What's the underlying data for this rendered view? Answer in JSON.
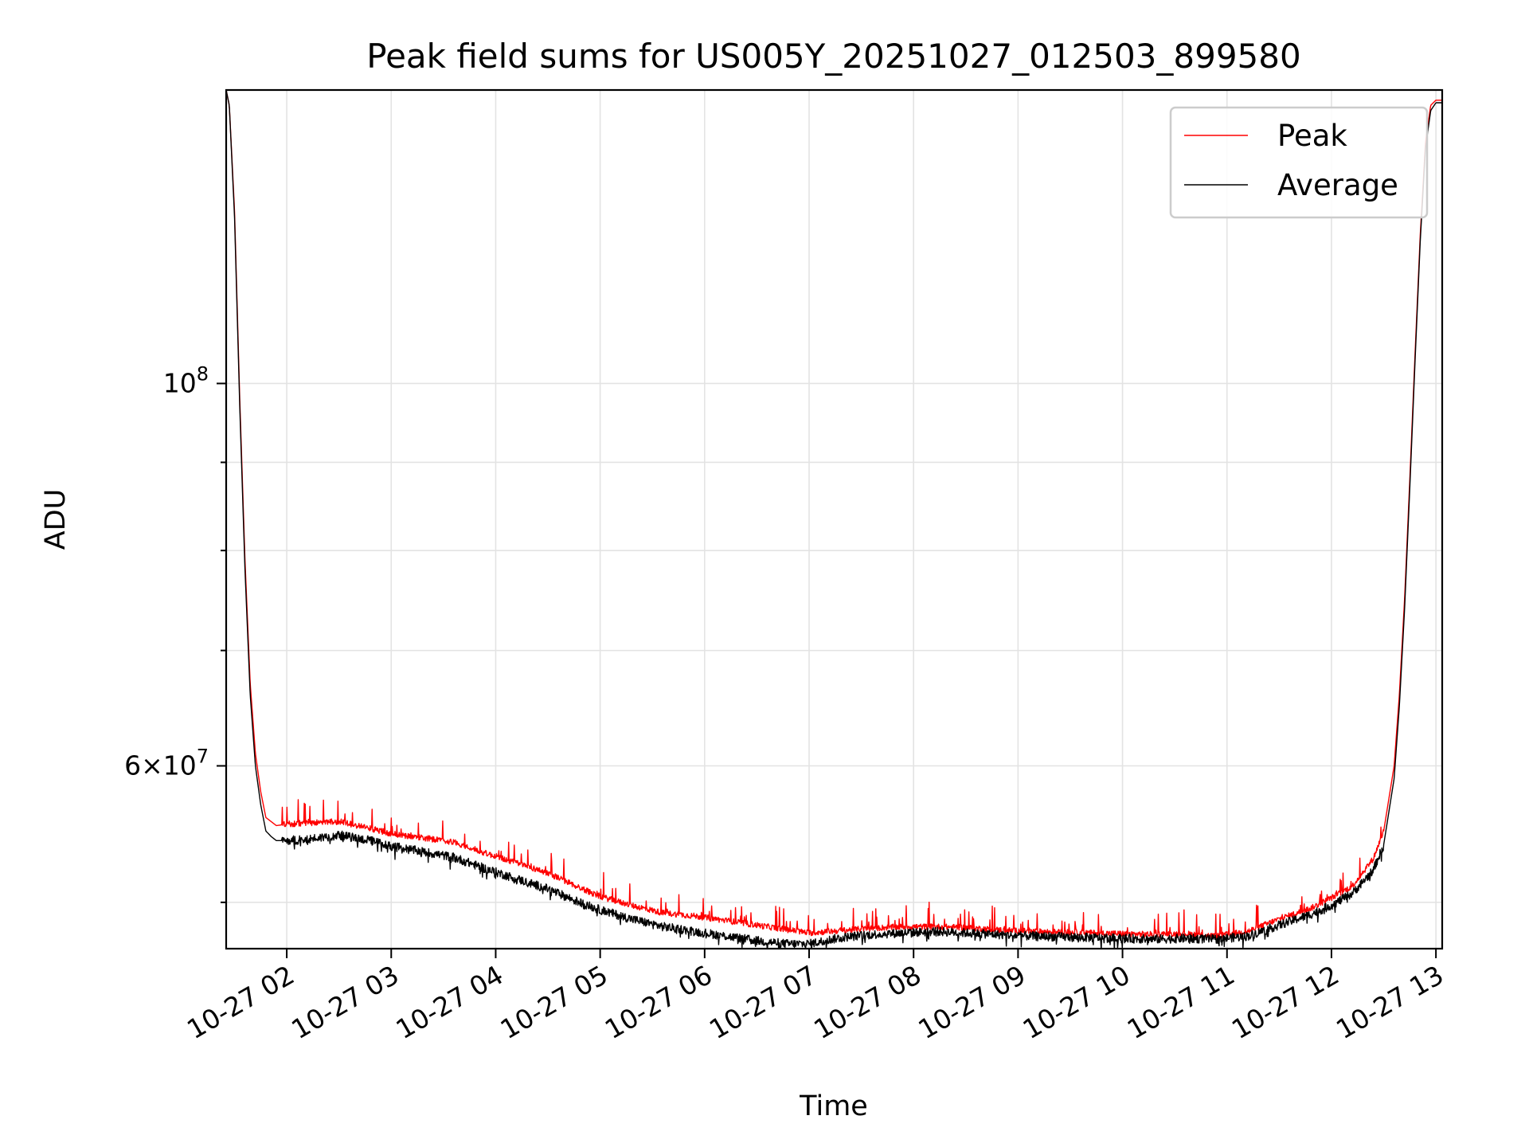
{
  "chart_data": {
    "type": "line",
    "title": "Peak field sums for US005Y_20251027_012503_899580",
    "xlabel": "Time",
    "ylabel": "ADU",
    "yscale": "log",
    "ylim": [
      47000000,
      148000000
    ],
    "xlim_hours": [
      1.42,
      13.06
    ],
    "grid": true,
    "legend_location": "top-right",
    "x_ticks": [
      {
        "label": "10-27 02",
        "hour": 2
      },
      {
        "label": "10-27 03",
        "hour": 3
      },
      {
        "label": "10-27 04",
        "hour": 4
      },
      {
        "label": "10-27 05",
        "hour": 5
      },
      {
        "label": "10-27 06",
        "hour": 6
      },
      {
        "label": "10-27 07",
        "hour": 7
      },
      {
        "label": "10-27 08",
        "hour": 8
      },
      {
        "label": "10-27 09",
        "hour": 9
      },
      {
        "label": "10-27 10",
        "hour": 10
      },
      {
        "label": "10-27 11",
        "hour": 11
      },
      {
        "label": "10-27 12",
        "hour": 12
      },
      {
        "label": "10-27 13",
        "hour": 13
      }
    ],
    "y_major_ticks": [
      {
        "value": 100000000,
        "base": "10",
        "exp": "8"
      },
      {
        "value": 60000000,
        "mantissa": "6",
        "base": "10",
        "exp": "7"
      }
    ],
    "y_minor_ticks": [
      50000000,
      70000000,
      80000000,
      90000000
    ],
    "series": [
      {
        "name": "Peak",
        "color": "#ff0000",
        "noise_fraction": 0.004,
        "spike_fraction": 0.03,
        "x_hours": [
          1.42,
          1.45,
          1.5,
          1.55,
          1.6,
          1.65,
          1.7,
          1.75,
          1.8,
          1.85,
          1.9,
          2.0,
          2.2,
          2.5,
          2.8,
          3.0,
          3.3,
          3.6,
          3.9,
          4.2,
          4.5,
          4.8,
          5.0,
          5.3,
          5.6,
          5.9,
          6.2,
          6.5,
          6.8,
          7.0,
          7.3,
          7.6,
          7.9,
          8.2,
          8.5,
          8.8,
          9.1,
          9.4,
          9.7,
          10.0,
          10.3,
          10.6,
          10.9,
          11.2,
          11.5,
          11.8,
          12.0,
          12.2,
          12.4,
          12.5,
          12.6,
          12.65,
          12.7,
          12.75,
          12.8,
          12.85,
          12.9,
          12.95,
          13.0,
          13.06
        ],
        "values": [
          148000000,
          145000000,
          126000000,
          98000000,
          79000000,
          67000000,
          61000000,
          58000000,
          56000000,
          55700000,
          55400000,
          55500000,
          55600000,
          55700000,
          55200000,
          54800000,
          54500000,
          54200000,
          53400000,
          52700000,
          52000000,
          51000000,
          50400000,
          49800000,
          49300000,
          49100000,
          48800000,
          48500000,
          48200000,
          48000000,
          48150000,
          48300000,
          48400000,
          48400000,
          48350000,
          48200000,
          48100000,
          48050000,
          48000000,
          47950000,
          47900000,
          47950000,
          47800000,
          48100000,
          48900000,
          49600000,
          50300000,
          51100000,
          53000000,
          55000000,
          60000000,
          66000000,
          75000000,
          88000000,
          104000000,
          122000000,
          138000000,
          145000000,
          146000000,
          146000000
        ]
      },
      {
        "name": "Average",
        "color": "#000000",
        "noise_fraction": 0.006,
        "spike_fraction": 0.012,
        "x_hours": [
          1.42,
          1.45,
          1.5,
          1.55,
          1.6,
          1.65,
          1.7,
          1.75,
          1.8,
          1.85,
          1.9,
          2.0,
          2.2,
          2.5,
          2.8,
          3.0,
          3.3,
          3.6,
          3.9,
          4.2,
          4.5,
          4.8,
          5.0,
          5.3,
          5.6,
          5.9,
          6.2,
          6.5,
          6.8,
          7.0,
          7.3,
          7.6,
          7.9,
          8.2,
          8.5,
          8.8,
          9.1,
          9.4,
          9.7,
          10.0,
          10.3,
          10.6,
          10.9,
          11.2,
          11.5,
          11.8,
          12.0,
          12.2,
          12.4,
          12.5,
          12.6,
          12.65,
          12.7,
          12.75,
          12.8,
          12.85,
          12.9,
          12.95,
          13.0,
          13.06
        ],
        "values": [
          148000000,
          145000000,
          125000000,
          97000000,
          78000000,
          66000000,
          60000000,
          57000000,
          55000000,
          54600000,
          54300000,
          54300000,
          54400000,
          54700000,
          54300000,
          53900000,
          53500000,
          53100000,
          52300000,
          51600000,
          50900000,
          50000000,
          49500000,
          48900000,
          48400000,
          48100000,
          47800000,
          47500000,
          47300000,
          47300000,
          47700000,
          47900000,
          48000000,
          48100000,
          48000000,
          47900000,
          47800000,
          47750000,
          47700000,
          47650000,
          47600000,
          47650000,
          47600000,
          47800000,
          48500000,
          49200000,
          49800000,
          50600000,
          52200000,
          54000000,
          59000000,
          65000000,
          74000000,
          87000000,
          103000000,
          121000000,
          137000000,
          144000000,
          145500000,
          145500000
        ]
      }
    ]
  }
}
